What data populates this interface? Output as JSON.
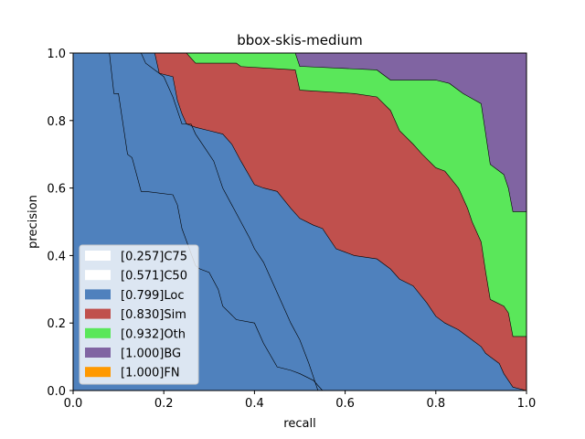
{
  "chart_data": {
    "type": "area",
    "title": "bbox-skis-medium",
    "xlabel": "recall",
    "ylabel": "precision",
    "xlim": [
      0,
      1
    ],
    "ylim": [
      0,
      1
    ],
    "xticks": [
      "0.0",
      "0.2",
      "0.4",
      "0.6",
      "0.8",
      "1.0"
    ],
    "yticks": [
      "0.0",
      "0.2",
      "0.4",
      "0.6",
      "0.8",
      "1.0"
    ],
    "grid": false,
    "legend_position": "lower-left",
    "series": [
      {
        "name": "[1.000]FN",
        "color": "#ff9900",
        "fill": true,
        "x": [
          0,
          1
        ],
        "y": [
          1,
          1
        ]
      },
      {
        "name": "[1.000]BG",
        "color": "#8064a2",
        "fill": true,
        "x": [
          0,
          0.49,
          1
        ],
        "y": [
          1,
          1,
          1
        ]
      },
      {
        "name": "[0.932]Oth",
        "color": "#5ae75a",
        "fill": true,
        "x": [
          0,
          0.25,
          0.26,
          0.49,
          0.5,
          0.51,
          0.67,
          0.7,
          0.8,
          0.83,
          0.86,
          0.9,
          0.92,
          0.95,
          0.96,
          0.97,
          1.0
        ],
        "y": [
          1,
          1,
          1,
          1,
          0.96,
          0.96,
          0.95,
          0.92,
          0.92,
          0.91,
          0.88,
          0.85,
          0.67,
          0.64,
          0.6,
          0.53,
          0.53
        ]
      },
      {
        "name": "[0.830]Sim",
        "color": "#c0504d",
        "fill": true,
        "x": [
          0,
          0.25,
          0.27,
          0.36,
          0.37,
          0.49,
          0.5,
          0.62,
          0.67,
          0.7,
          0.72,
          0.75,
          0.77,
          0.8,
          0.82,
          0.85,
          0.87,
          0.88,
          0.9,
          0.91,
          0.92,
          0.95,
          0.96,
          0.97,
          1.0
        ],
        "y": [
          1,
          1,
          0.97,
          0.97,
          0.96,
          0.95,
          0.89,
          0.88,
          0.87,
          0.83,
          0.77,
          0.73,
          0.7,
          0.66,
          0.65,
          0.6,
          0.54,
          0.5,
          0.44,
          0.35,
          0.27,
          0.25,
          0.23,
          0.16,
          0.16
        ]
      },
      {
        "name": "[0.799]Loc",
        "color": "#4f81bd",
        "fill": true,
        "x": [
          0,
          0.18,
          0.19,
          0.22,
          0.23,
          0.24,
          0.25,
          0.27,
          0.3,
          0.33,
          0.35,
          0.37,
          0.4,
          0.42,
          0.45,
          0.48,
          0.5,
          0.53,
          0.55,
          0.58,
          0.6,
          0.62,
          0.67,
          0.7,
          0.72,
          0.75,
          0.78,
          0.8,
          0.82,
          0.85,
          0.87,
          0.9,
          0.91,
          0.92,
          0.94,
          0.95,
          0.96,
          0.97,
          1.0
        ],
        "y": [
          1,
          1,
          0.94,
          0.93,
          0.86,
          0.82,
          0.79,
          0.78,
          0.77,
          0.76,
          0.73,
          0.68,
          0.61,
          0.6,
          0.59,
          0.54,
          0.51,
          0.49,
          0.48,
          0.42,
          0.41,
          0.4,
          0.39,
          0.36,
          0.33,
          0.31,
          0.26,
          0.22,
          0.2,
          0.18,
          0.16,
          0.13,
          0.11,
          0.1,
          0.08,
          0.05,
          0.03,
          0.01,
          0
        ]
      },
      {
        "name": "[0.571]C50",
        "color": "#ffffff",
        "fill": false,
        "x": [
          0,
          0.15,
          0.16,
          0.2,
          0.21,
          0.22,
          0.23,
          0.24,
          0.26,
          0.27,
          0.29,
          0.31,
          0.32,
          0.33,
          0.35,
          0.37,
          0.39,
          0.4,
          0.42,
          0.44,
          0.46,
          0.48,
          0.5,
          0.52,
          0.54
        ],
        "y": [
          1,
          1,
          0.97,
          0.93,
          0.9,
          0.87,
          0.83,
          0.79,
          0.79,
          0.76,
          0.72,
          0.68,
          0.64,
          0.6,
          0.55,
          0.5,
          0.45,
          0.42,
          0.38,
          0.32,
          0.26,
          0.2,
          0.15,
          0.08,
          0
        ]
      },
      {
        "name": "[0.257]C75",
        "color": "#ffffff",
        "fill": false,
        "x": [
          0,
          0.08,
          0.09,
          0.1,
          0.12,
          0.13,
          0.15,
          0.16,
          0.22,
          0.23,
          0.24,
          0.27,
          0.28,
          0.3,
          0.32,
          0.33,
          0.36,
          0.4,
          0.42,
          0.45,
          0.48,
          0.5,
          0.53,
          0.55
        ],
        "y": [
          1,
          1,
          0.88,
          0.88,
          0.7,
          0.69,
          0.59,
          0.59,
          0.58,
          0.55,
          0.48,
          0.37,
          0.36,
          0.35,
          0.3,
          0.25,
          0.21,
          0.2,
          0.14,
          0.07,
          0.06,
          0.05,
          0.03,
          0
        ]
      }
    ]
  }
}
